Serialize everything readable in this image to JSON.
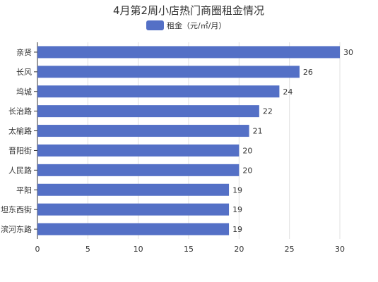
{
  "chart_data": {
    "type": "bar",
    "orientation": "horizontal",
    "title": "4月第2周小店热门商圈租金情况",
    "legend": {
      "position": "top",
      "label": "租金（元/㎡/月）"
    },
    "categories": [
      "亲贤",
      "长风",
      "坞城",
      "长治路",
      "太榆路",
      "晋阳街",
      "人民路",
      "平阳",
      "坦东西街",
      "滨河东路"
    ],
    "series": [
      {
        "name": "租金（元/㎡/月）",
        "values": [
          30,
          26,
          24,
          22,
          21,
          20,
          20,
          19,
          19,
          19
        ]
      }
    ],
    "xlim": [
      0,
      30
    ],
    "xticks": [
      0,
      5,
      10,
      15,
      20,
      25,
      30
    ],
    "grid": true,
    "colors": {
      "bar": "#5470c6",
      "text": "#333333"
    }
  }
}
